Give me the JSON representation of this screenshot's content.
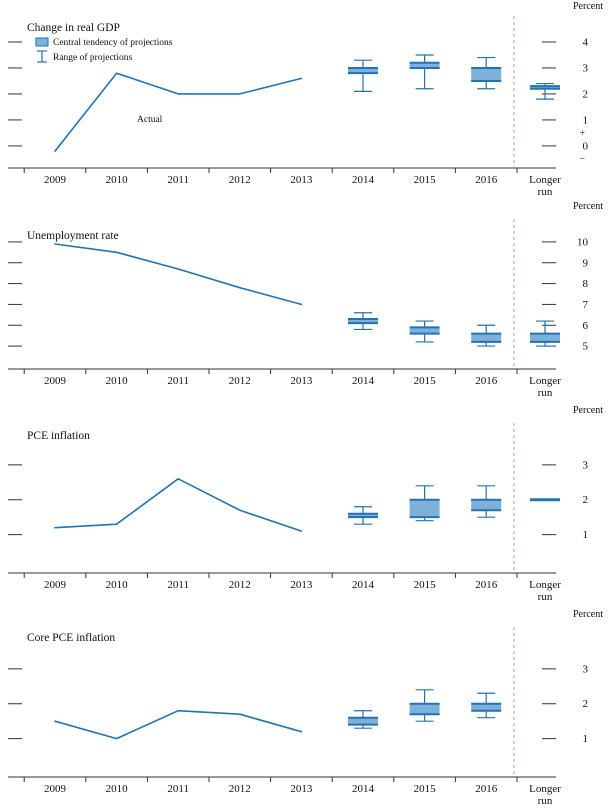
{
  "colors": {
    "accent": "#2273b2",
    "box_fill": "#7fb0d9",
    "dashed_line": "#7ab0d9",
    "axis": "#333333"
  },
  "chart_data": [
    {
      "type": "line+box",
      "title": "Change in real GDP",
      "unit_label": "Percent",
      "x_categories": [
        "2009",
        "2010",
        "2011",
        "2012",
        "2013",
        "2014",
        "2015",
        "2016",
        "Longer run"
      ],
      "ylim": [
        -0.85,
        5.0
      ],
      "yticks": [
        4,
        3,
        2,
        1,
        0
      ],
      "sign_labels": {
        "plus": "+",
        "minus": "−"
      },
      "legend": [
        {
          "icon": "central-tendency-box",
          "label": "Central tendency of projections"
        },
        {
          "icon": "range-ibeam",
          "label": "Range of projections"
        }
      ],
      "actual": {
        "label": "Actual",
        "x": [
          "2009",
          "2010",
          "2011",
          "2012",
          "2013"
        ],
        "values": [
          -0.2,
          2.8,
          2.0,
          2.0,
          2.6
        ]
      },
      "projections": [
        {
          "x": "2014",
          "central_tendency": [
            2.8,
            3.0
          ],
          "range": [
            2.1,
            3.3
          ]
        },
        {
          "x": "2015",
          "central_tendency": [
            3.0,
            3.2
          ],
          "range": [
            2.2,
            3.5
          ]
        },
        {
          "x": "2016",
          "central_tendency": [
            2.5,
            3.0
          ],
          "range": [
            2.2,
            3.4
          ]
        },
        {
          "x": "Longer run",
          "central_tendency": [
            2.2,
            2.3
          ],
          "range": [
            1.8,
            2.4
          ]
        }
      ]
    },
    {
      "type": "line+box",
      "title": "Unemployment rate",
      "unit_label": "Percent",
      "x_categories": [
        "2009",
        "2010",
        "2011",
        "2012",
        "2013",
        "2014",
        "2015",
        "2016",
        "Longer run"
      ],
      "ylim": [
        3.9,
        11.1
      ],
      "yticks": [
        10,
        9,
        8,
        7,
        6,
        5
      ],
      "actual": {
        "x": [
          "2009",
          "2010",
          "2011",
          "2012",
          "2013"
        ],
        "values": [
          9.9,
          9.5,
          8.7,
          7.8,
          7.0
        ]
      },
      "projections": [
        {
          "x": "2014",
          "central_tendency": [
            6.1,
            6.3
          ],
          "range": [
            5.8,
            6.6
          ]
        },
        {
          "x": "2015",
          "central_tendency": [
            5.6,
            5.9
          ],
          "range": [
            5.2,
            6.2
          ]
        },
        {
          "x": "2016",
          "central_tendency": [
            5.2,
            5.6
          ],
          "range": [
            5.0,
            6.0
          ]
        },
        {
          "x": "Longer run",
          "central_tendency": [
            5.2,
            5.6
          ],
          "range": [
            5.0,
            6.2
          ]
        }
      ]
    },
    {
      "type": "line+box",
      "title": "PCE inflation",
      "unit_label": "Percent",
      "x_categories": [
        "2009",
        "2010",
        "2011",
        "2012",
        "2013",
        "2014",
        "2015",
        "2016",
        "Longer run"
      ],
      "ylim": [
        -0.1,
        4.2
      ],
      "yticks": [
        3,
        2,
        1
      ],
      "actual": {
        "x": [
          "2009",
          "2010",
          "2011",
          "2012",
          "2013"
        ],
        "values": [
          1.2,
          1.3,
          2.6,
          1.7,
          1.1
        ]
      },
      "projections": [
        {
          "x": "2014",
          "central_tendency": [
            1.5,
            1.6
          ],
          "range": [
            1.3,
            1.8
          ]
        },
        {
          "x": "2015",
          "central_tendency": [
            1.5,
            2.0
          ],
          "range": [
            1.4,
            2.4
          ]
        },
        {
          "x": "2016",
          "central_tendency": [
            1.7,
            2.0
          ],
          "range": [
            1.5,
            2.4
          ]
        },
        {
          "x": "Longer run",
          "central_tendency": [
            2.0,
            2.0
          ],
          "range": [
            2.0,
            2.0
          ]
        }
      ]
    },
    {
      "type": "line+box",
      "title": "Core PCE inflation",
      "unit_label": "Percent",
      "x_categories": [
        "2009",
        "2010",
        "2011",
        "2012",
        "2013",
        "2014",
        "2015",
        "2016",
        "Longer run"
      ],
      "ylim": [
        -0.1,
        4.2
      ],
      "yticks": [
        3,
        2,
        1
      ],
      "actual": {
        "x": [
          "2009",
          "2010",
          "2011",
          "2012",
          "2013"
        ],
        "values": [
          1.5,
          1.0,
          1.8,
          1.7,
          1.2
        ]
      },
      "projections": [
        {
          "x": "2014",
          "central_tendency": [
            1.4,
            1.6
          ],
          "range": [
            1.3,
            1.8
          ]
        },
        {
          "x": "2015",
          "central_tendency": [
            1.7,
            2.0
          ],
          "range": [
            1.5,
            2.4
          ]
        },
        {
          "x": "2016",
          "central_tendency": [
            1.8,
            2.0
          ],
          "range": [
            1.6,
            2.3
          ]
        }
      ]
    }
  ]
}
